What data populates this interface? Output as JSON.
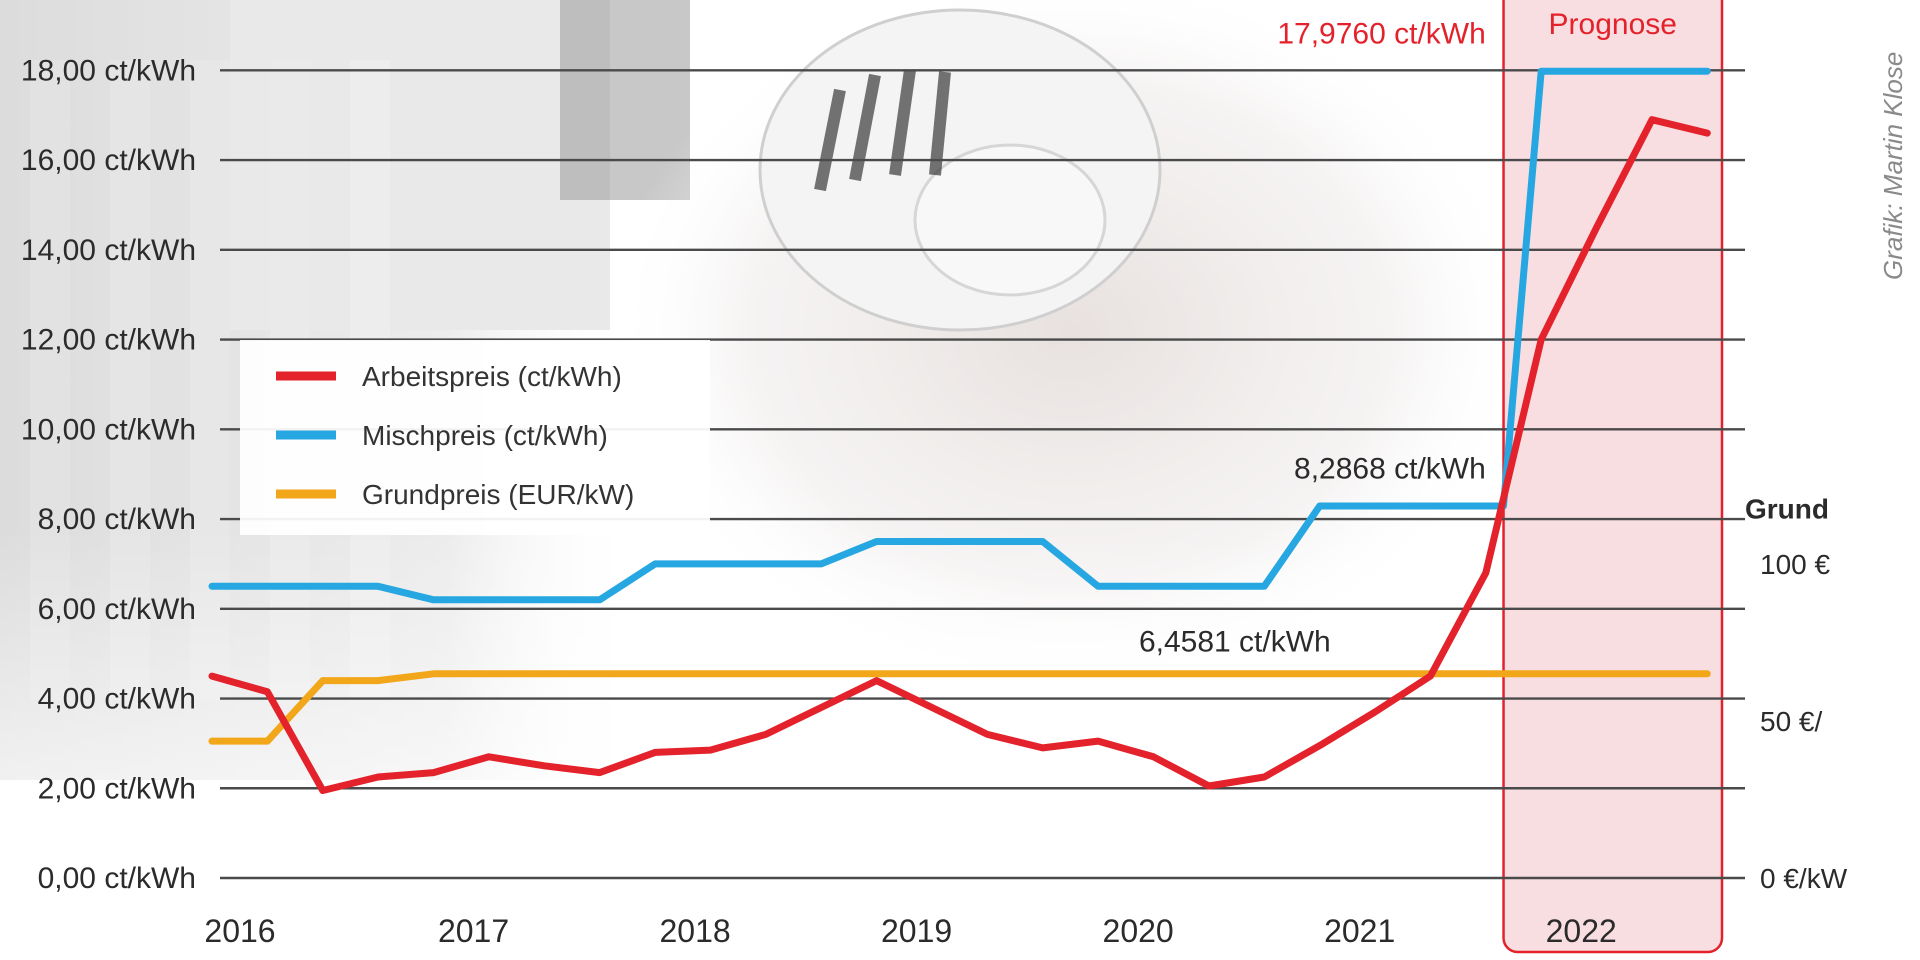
{
  "chart_data": {
    "type": "line",
    "credit": "Grafik: Martin Klose",
    "y_ticks": [
      "0,00 ct/kWh",
      "2,00 ct/kWh",
      "4,00 ct/kWh",
      "6,00 ct/kWh",
      "8,00 ct/kWh",
      "10,00 ct/kWh",
      "12,00 ct/kWh",
      "14,00 ct/kWh",
      "16,00 ct/kWh",
      "18,00 ct/kWh"
    ],
    "y_tick_values": [
      0,
      2,
      4,
      6,
      8,
      10,
      12,
      14,
      16,
      18
    ],
    "ylim": [
      0,
      19.5
    ],
    "xlim": [
      2016.0,
      2022.92
    ],
    "x_ticks": [
      "2016",
      "2017",
      "2018",
      "2019",
      "2020",
      "2021",
      "2022"
    ],
    "x_tick_values": [
      2016,
      2017,
      2018,
      2019,
      2020,
      2021,
      2022
    ],
    "right_axis": {
      "title": "Grund",
      "labels": [
        "100 €",
        "50 €/",
        "0 €/kW"
      ],
      "label_values": [
        100,
        50,
        0
      ],
      "scale_ct_per_eur": 0.07
    },
    "forecast": {
      "label": "Prognose",
      "from": 2021.83,
      "to": 2022.92
    },
    "legend": {
      "position": "upper-left"
    },
    "series": [
      {
        "name": "Arbeitspreis (ct/kWh)",
        "color": "#e3222b",
        "points": [
          [
            2016.0,
            4.5
          ],
          [
            2016.25,
            4.15
          ],
          [
            2016.5,
            1.95
          ],
          [
            2016.75,
            2.25
          ],
          [
            2017.0,
            2.35
          ],
          [
            2017.25,
            2.7
          ],
          [
            2017.5,
            2.5
          ],
          [
            2017.75,
            2.35
          ],
          [
            2018.0,
            2.8
          ],
          [
            2018.25,
            2.85
          ],
          [
            2018.5,
            3.2
          ],
          [
            2018.75,
            3.8
          ],
          [
            2019.0,
            4.4
          ],
          [
            2019.25,
            3.8
          ],
          [
            2019.5,
            3.2
          ],
          [
            2019.75,
            2.9
          ],
          [
            2020.0,
            3.05
          ],
          [
            2020.25,
            2.7
          ],
          [
            2020.5,
            2.05
          ],
          [
            2020.75,
            2.25
          ],
          [
            2021.0,
            2.95
          ],
          [
            2021.25,
            3.7
          ],
          [
            2021.5,
            4.5
          ],
          [
            2021.75,
            6.8
          ],
          [
            2022.0,
            12.0
          ],
          [
            2022.25,
            14.5
          ],
          [
            2022.5,
            16.9
          ],
          [
            2022.75,
            16.6
          ]
        ]
      },
      {
        "name": "Mischpreis (ct/kWh)",
        "color": "#26a7e1",
        "points": [
          [
            2016.0,
            6.5
          ],
          [
            2016.5,
            6.5
          ],
          [
            2016.75,
            6.5
          ],
          [
            2017.0,
            6.2
          ],
          [
            2017.5,
            6.2
          ],
          [
            2017.75,
            6.2
          ],
          [
            2018.0,
            7.0
          ],
          [
            2018.5,
            7.0
          ],
          [
            2018.75,
            7.0
          ],
          [
            2019.0,
            7.5
          ],
          [
            2019.5,
            7.5
          ],
          [
            2019.75,
            7.5
          ],
          [
            2020.0,
            6.5
          ],
          [
            2020.5,
            6.5
          ],
          [
            2020.75,
            6.5
          ],
          [
            2021.0,
            8.29
          ],
          [
            2021.5,
            8.29
          ],
          [
            2021.83,
            8.29
          ],
          [
            2022.0,
            17.98
          ],
          [
            2022.5,
            17.98
          ],
          [
            2022.75,
            17.98
          ]
        ]
      },
      {
        "name": "Grundpreis (EUR/kW)",
        "color": "#f2a71b",
        "points": [
          [
            2016.0,
            3.05
          ],
          [
            2016.25,
            3.05
          ],
          [
            2016.5,
            4.4
          ],
          [
            2016.75,
            4.4
          ],
          [
            2017.0,
            4.55
          ],
          [
            2017.5,
            4.55
          ],
          [
            2018.0,
            4.55
          ],
          [
            2018.5,
            4.55
          ],
          [
            2019.0,
            4.55
          ],
          [
            2019.5,
            4.55
          ],
          [
            2020.0,
            4.55
          ],
          [
            2020.5,
            4.55
          ],
          [
            2021.0,
            4.55
          ],
          [
            2021.5,
            4.55
          ],
          [
            2022.0,
            4.55
          ],
          [
            2022.5,
            4.55
          ],
          [
            2022.75,
            4.55
          ]
        ]
      }
    ],
    "annotations": [
      {
        "text": "17,9760 ct/kWh",
        "x": 2021.75,
        "y": 18.6,
        "anchor": "end",
        "color": "#e3222b"
      },
      {
        "text": "8,2868 ct/kWh",
        "x": 2021.75,
        "y": 8.9,
        "anchor": "end",
        "color": "#2b2b2b"
      },
      {
        "text": "6,4581 ct/kWh",
        "x": 2021.05,
        "y": 5.05,
        "anchor": "end",
        "color": "#2b2b2b"
      }
    ]
  }
}
